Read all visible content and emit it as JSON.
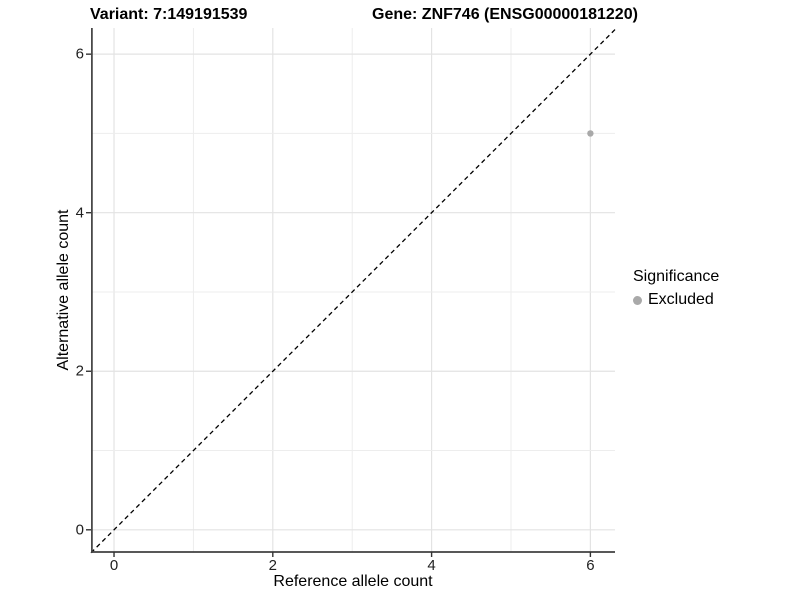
{
  "titles": {
    "left": "Variant: 7:149191539",
    "right": "Gene: ZNF746 (ENSG00000181220)"
  },
  "chart_data": {
    "type": "scatter",
    "title_left": "Variant: 7:149191539",
    "title_right": "Gene: ZNF746 (ENSG00000181220)",
    "xlabel": "Reference allele count",
    "ylabel": "Alternative allele count",
    "xlim": [
      -0.29,
      6.31
    ],
    "ylim": [
      -0.28,
      6.33
    ],
    "xticks": [
      0,
      2,
      4,
      6
    ],
    "yticks": [
      0,
      2,
      4,
      6
    ],
    "gridlines_x": [
      0,
      1,
      2,
      3,
      4,
      5,
      6
    ],
    "gridlines_y": [
      0,
      1,
      2,
      3,
      4,
      5,
      6
    ],
    "grid": true,
    "points": [
      {
        "x": 6,
        "y": 5,
        "series": "Excluded"
      }
    ],
    "identity_line": {
      "style": "dashed",
      "from": -0.29,
      "to": 6.33
    },
    "legend": {
      "title": "Significance",
      "position": "right",
      "entries": [
        {
          "label": "Excluded",
          "color": "#a9a9a9"
        }
      ]
    }
  },
  "colors": {
    "point": "#a9a9a9",
    "grid_major": "#e3e3e3",
    "grid_minor": "#ededed",
    "axis_line": "#404040",
    "tick_mark": "#333333",
    "identity_line": "#000000",
    "tick_label": "#1f1f1f"
  }
}
